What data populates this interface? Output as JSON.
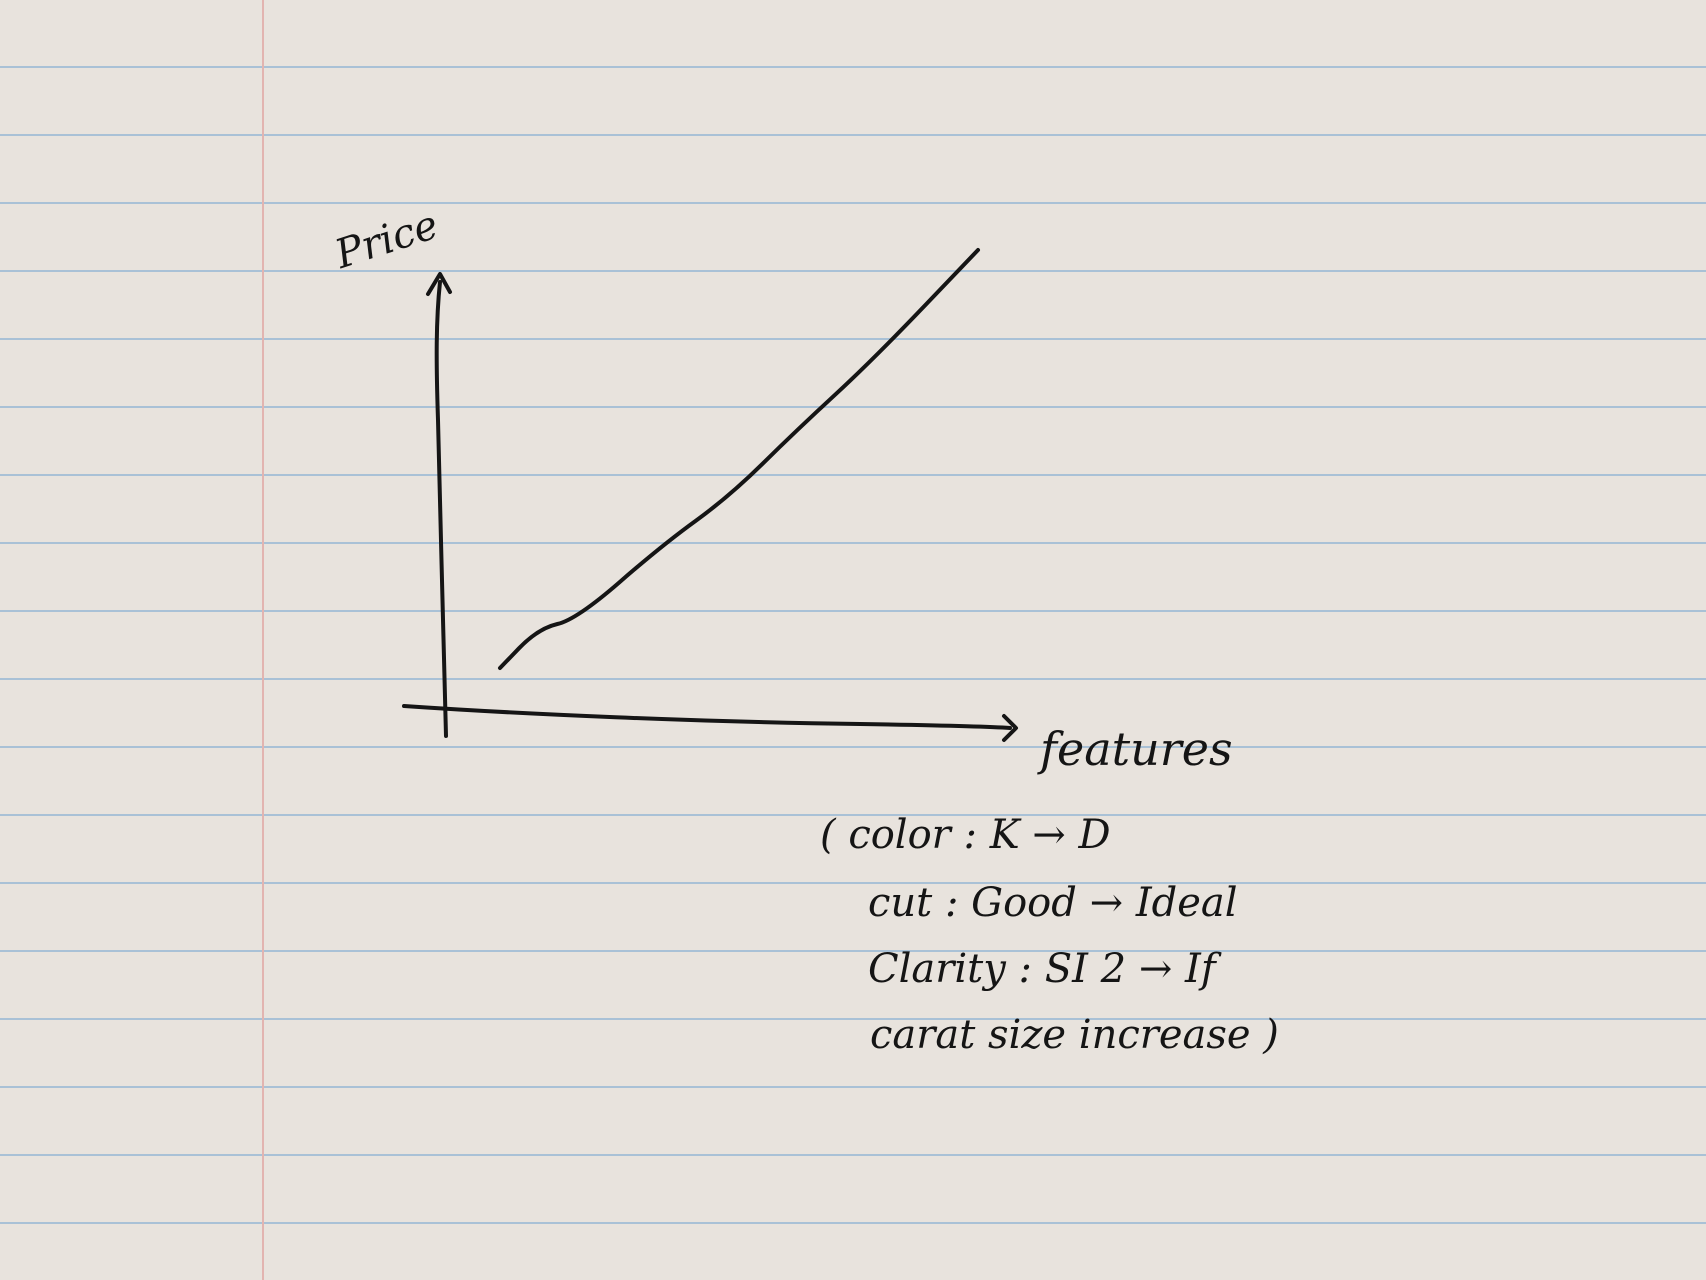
{
  "chart_data": {
    "type": "line",
    "ylabel": "Price",
    "xlabel": "features",
    "annotation": [
      "( color : K → D",
      "cut : Good → Ideal",
      "Clarity : SI 2 → If",
      "carat size increase )"
    ],
    "x": [
      0.0,
      0.08,
      0.16,
      0.34,
      0.48,
      0.62,
      0.78,
      1.0
    ],
    "y": [
      0.05,
      0.14,
      0.16,
      0.33,
      0.44,
      0.59,
      0.75,
      1.0
    ],
    "xlim": [
      0,
      1
    ],
    "ylim": [
      0,
      1
    ],
    "grid": false
  },
  "page": {
    "ink_color": "#151515",
    "paper_color": "#e8e3dd",
    "rule_color": "#a9c1d6",
    "margin_color": "#e2b4b0"
  }
}
